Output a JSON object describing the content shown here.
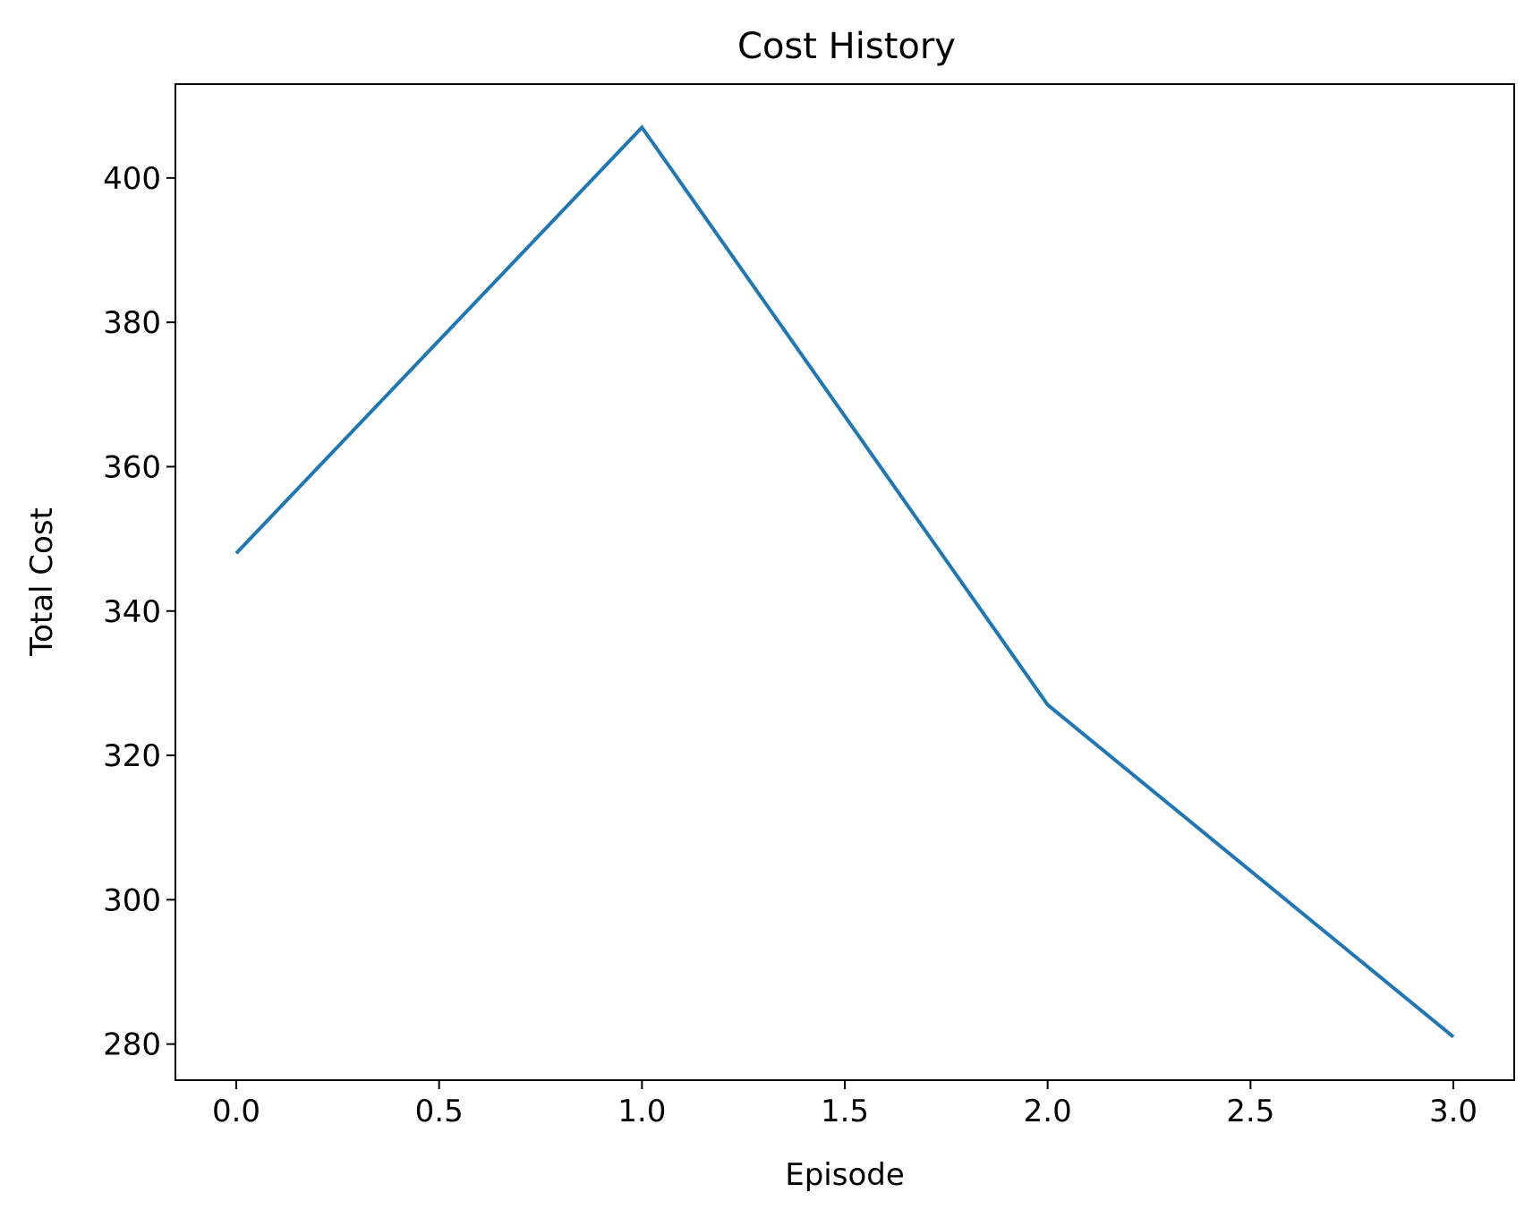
{
  "chart_data": {
    "type": "line",
    "title": "Cost History",
    "xlabel": "Episode",
    "ylabel": "Total Cost",
    "x": [
      0,
      1,
      2,
      3
    ],
    "series": [
      {
        "values": [
          348,
          407,
          327,
          281
        ],
        "color": "#1f77b4"
      }
    ],
    "xlim": [
      -0.15,
      3.15
    ],
    "ylim": [
      275,
      413
    ],
    "xticks": [
      0.0,
      0.5,
      1.0,
      1.5,
      2.0,
      2.5,
      3.0
    ],
    "xtick_labels": [
      "0.0",
      "0.5",
      "1.0",
      "1.5",
      "2.0",
      "2.5",
      "3.0"
    ],
    "yticks": [
      280,
      300,
      320,
      340,
      360,
      380,
      400
    ],
    "ytick_labels": [
      "280",
      "300",
      "320",
      "340",
      "360",
      "380",
      "400"
    ],
    "grid": false,
    "legend": false
  }
}
